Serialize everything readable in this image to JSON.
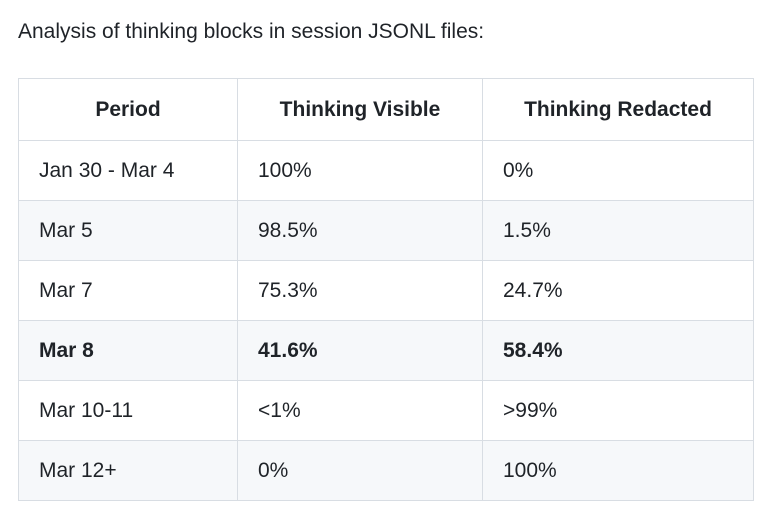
{
  "title": "Analysis of thinking blocks in session JSONL files:",
  "colors": {
    "background": "#ffffff",
    "text": "#1f2328",
    "table_border": "#d8dde3",
    "stripe_row_background": "#f6f8fa"
  },
  "table": {
    "columns": {
      "period": "Period",
      "visible": "Thinking Visible",
      "redacted": "Thinking Redacted"
    },
    "rows": [
      {
        "period": "Jan 30 - Mar 4",
        "visible": "100%",
        "redacted": "0%",
        "bold": false
      },
      {
        "period": "Mar 5",
        "visible": "98.5%",
        "redacted": "1.5%",
        "bold": false
      },
      {
        "period": "Mar 7",
        "visible": "75.3%",
        "redacted": "24.7%",
        "bold": false
      },
      {
        "period": "Mar 8",
        "visible": "41.6%",
        "redacted": "58.4%",
        "bold": true
      },
      {
        "period": "Mar 10-11",
        "visible": "<1%",
        "redacted": ">99%",
        "bold": false
      },
      {
        "period": "Mar 12+",
        "visible": "0%",
        "redacted": "100%",
        "bold": false
      }
    ]
  }
}
